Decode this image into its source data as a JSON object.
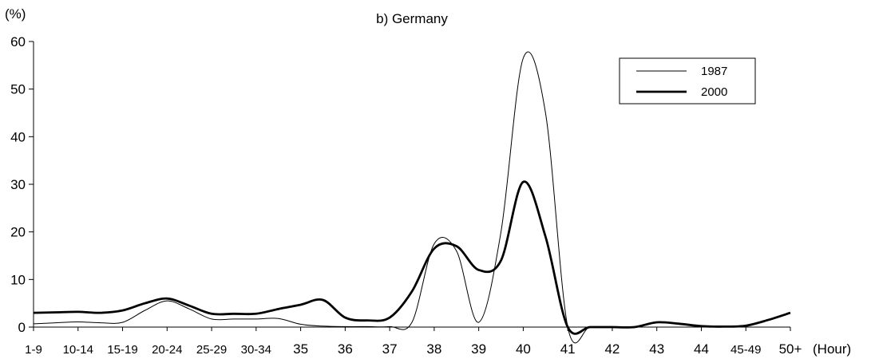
{
  "chart_data": {
    "type": "line",
    "title": "b) Germany",
    "ylabel": "(%)",
    "xlabel": "(Hour)",
    "ylim": [
      0,
      60
    ],
    "yticks": [
      0,
      10,
      20,
      30,
      40,
      50,
      60
    ],
    "categories": [
      "1-9",
      "10-14",
      "15-19",
      "20-24",
      "25-29",
      "30-34",
      "35",
      "36",
      "37",
      "38",
      "39",
      "40",
      "41",
      "42",
      "43",
      "44",
      "45-49",
      "50+"
    ],
    "legend_position": "top-right",
    "series": [
      {
        "name": "1987",
        "line_weight": "thin",
        "color": "#000000",
        "x": [
          0,
          0.5,
          1,
          1.5,
          2,
          2.5,
          3,
          3.5,
          4,
          4.5,
          5,
          5.5,
          6,
          6.5,
          7,
          7.5,
          8,
          8.5,
          9,
          9.5,
          10,
          10.5,
          11,
          11.5,
          12,
          12.5,
          13,
          13.5,
          14,
          14.5,
          15,
          15.5,
          16,
          16.5,
          17
        ],
        "values": [
          0.7,
          0.9,
          1.1,
          0.9,
          1.0,
          3.5,
          5.5,
          3.8,
          1.7,
          1.7,
          1.7,
          1.8,
          0.6,
          0.2,
          0.1,
          0.1,
          0.1,
          1.0,
          17.5,
          16.0,
          1.0,
          20.0,
          56.5,
          45.0,
          0.0,
          0.0,
          0.0,
          0.0,
          1.0,
          0.7,
          0.2,
          0.1,
          0.3,
          1.5,
          3.0
        ]
      },
      {
        "name": "2000",
        "line_weight": "thick",
        "color": "#000000",
        "x": [
          0,
          0.5,
          1,
          1.5,
          2,
          2.5,
          3,
          3.5,
          4,
          4.5,
          5,
          5.5,
          6,
          6.5,
          7,
          7.5,
          8,
          8.5,
          9,
          9.5,
          10,
          10.5,
          11,
          11.5,
          12,
          12.5,
          13,
          13.5,
          14,
          14.5,
          15,
          15.5,
          16,
          16.5,
          17
        ],
        "values": [
          3.0,
          3.1,
          3.2,
          3.0,
          3.5,
          5.0,
          6.0,
          4.5,
          2.8,
          2.8,
          2.8,
          3.8,
          4.7,
          5.7,
          2.0,
          1.4,
          2.0,
          7.5,
          16.5,
          17.0,
          12.0,
          14.0,
          30.5,
          19.0,
          0.0,
          0.0,
          0.0,
          0.0,
          1.0,
          0.7,
          0.2,
          0.1,
          0.3,
          1.5,
          3.0
        ]
      }
    ]
  }
}
